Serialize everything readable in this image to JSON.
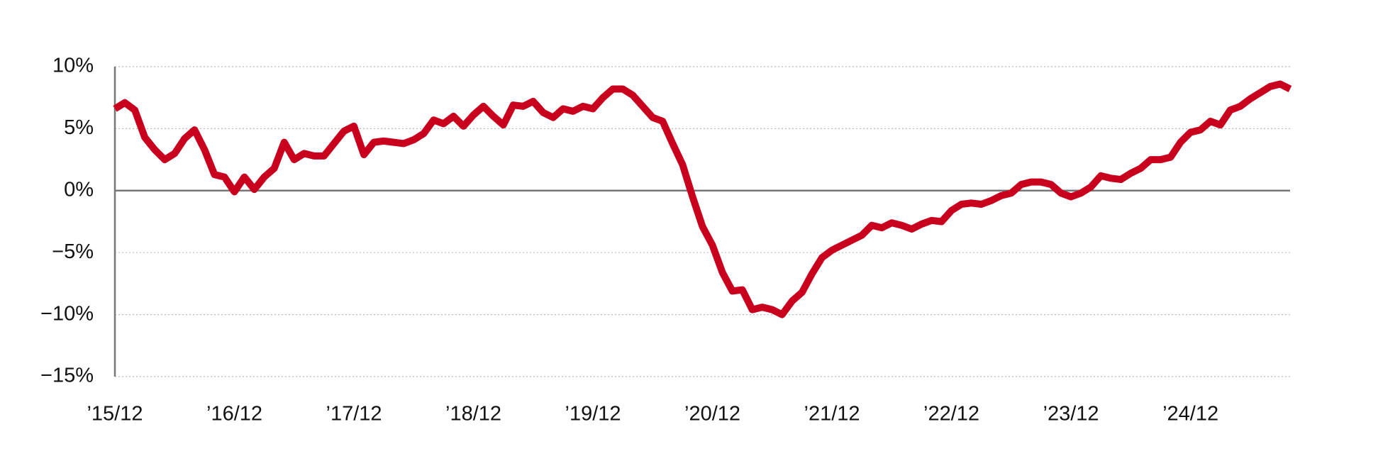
{
  "chart_data": {
    "type": "line",
    "color": "#c8001e",
    "categories": [
      "’15/12",
      null,
      null,
      null,
      null,
      null,
      null,
      null,
      null,
      null,
      null,
      null,
      "’16/12",
      null,
      null,
      null,
      null,
      null,
      null,
      null,
      null,
      null,
      null,
      null,
      "’17/12",
      null,
      null,
      null,
      null,
      null,
      null,
      null,
      null,
      null,
      null,
      null,
      "’18/12",
      null,
      null,
      null,
      null,
      null,
      null,
      null,
      null,
      null,
      null,
      null,
      "’19/12",
      null,
      null,
      null,
      null,
      null,
      null,
      null,
      null,
      null,
      null,
      null,
      "’20/12",
      null,
      null,
      null,
      null,
      null,
      null,
      null,
      null,
      null,
      null,
      null,
      "’21/12",
      null,
      null,
      null,
      null,
      null,
      null,
      null,
      null,
      null,
      null,
      null,
      "’22/12",
      null,
      null,
      null,
      null,
      null,
      null,
      null,
      null,
      null,
      null,
      null,
      "’23/12",
      null,
      null,
      null,
      null,
      null,
      null,
      null,
      null,
      null,
      null,
      null,
      "’24/12",
      null,
      null,
      null,
      null,
      null,
      null,
      null,
      null,
      null,
      null
    ],
    "values": [
      6.6,
      7.1,
      6.5,
      4.3,
      3.3,
      2.5,
      3.0,
      4.2,
      4.9,
      3.3,
      1.3,
      1.1,
      -0.1,
      1.1,
      0.1,
      1.1,
      1.8,
      3.9,
      2.5,
      3.0,
      2.8,
      2.8,
      3.8,
      4.8,
      5.2,
      2.9,
      3.9,
      4.0,
      3.9,
      3.8,
      4.1,
      4.6,
      5.7,
      5.4,
      6.0,
      5.2,
      6.1,
      6.8,
      6.0,
      5.3,
      6.9,
      6.8,
      7.2,
      6.3,
      5.9,
      6.6,
      6.4,
      6.8,
      6.6,
      7.5,
      8.2,
      8.2,
      7.7,
      6.8,
      5.9,
      5.6,
      3.8,
      2.1,
      -0.5,
      -2.9,
      -4.4,
      -6.6,
      -8.1,
      -8.0,
      -9.6,
      -9.4,
      -9.6,
      -10.0,
      -8.9,
      -8.2,
      -6.7,
      -5.4,
      -4.8,
      -4.4,
      -4.0,
      -3.6,
      -2.8,
      -3.0,
      -2.6,
      -2.8,
      -3.1,
      -2.7,
      -2.4,
      -2.5,
      -1.6,
      -1.1,
      -1.0,
      -1.1,
      -0.8,
      -0.4,
      -0.2,
      0.5,
      0.7,
      0.7,
      0.5,
      -0.2,
      -0.5,
      -0.2,
      0.3,
      1.2,
      1.0,
      0.9,
      1.4,
      1.8,
      2.5,
      2.5,
      2.7,
      3.9,
      4.7,
      4.9,
      5.6,
      5.3,
      6.5,
      6.8,
      7.4,
      7.9,
      8.4,
      8.6,
      8.2
    ],
    "ylim": [
      -15,
      10
    ],
    "yticks": [
      {
        "value": 10,
        "label": "10%"
      },
      {
        "value": 5,
        "label": "5%"
      },
      {
        "value": 0,
        "label": "0%"
      },
      {
        "value": -5,
        "label": "−5%"
      },
      {
        "value": -10,
        "label": "−10%"
      },
      {
        "value": -15,
        "label": "−15%"
      }
    ],
    "grid": true
  }
}
